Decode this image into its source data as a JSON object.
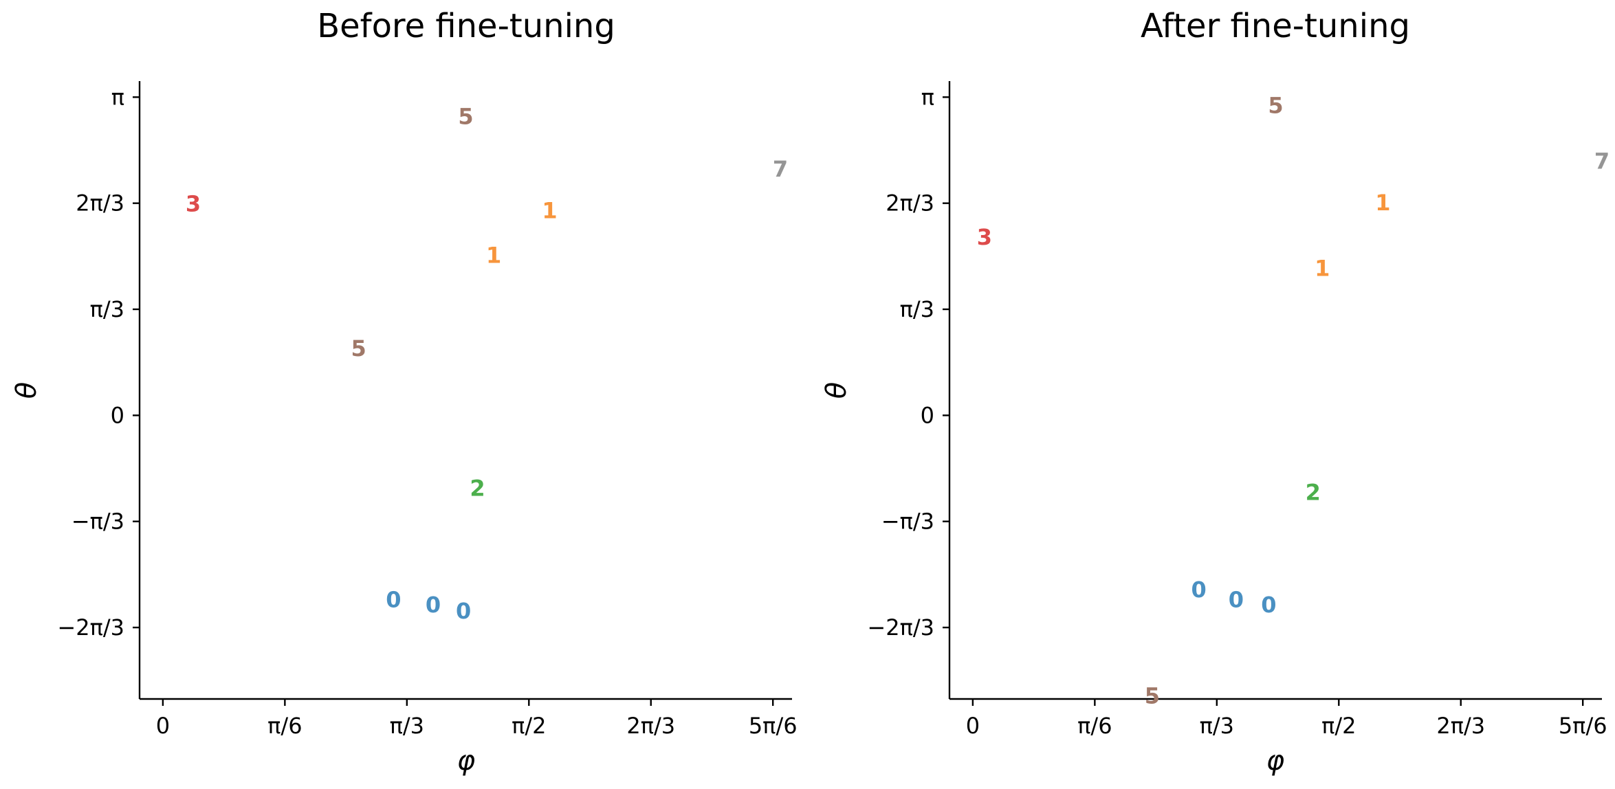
{
  "chart_data": [
    {
      "type": "scatter",
      "title": "Before fine-tuning",
      "xlabel": "φ",
      "ylabel": "θ",
      "xlim": [
        -0.1,
        2.7
      ],
      "ylim": [
        -2.8,
        3.3
      ],
      "x_ticks": [
        {
          "value": 0,
          "label": "0"
        },
        {
          "value": 0.5236,
          "label": "π/6"
        },
        {
          "value": 1.0472,
          "label": "π/3"
        },
        {
          "value": 1.5708,
          "label": "π/2"
        },
        {
          "value": 2.0944,
          "label": "2π/3"
        },
        {
          "value": 2.618,
          "label": "5π/6"
        }
      ],
      "y_ticks": [
        {
          "value": 3.1416,
          "label": "π"
        },
        {
          "value": 2.0944,
          "label": "2π/3"
        },
        {
          "value": 1.0472,
          "label": "π/3"
        },
        {
          "value": 0,
          "label": "0"
        },
        {
          "value": -1.0472,
          "label": "−π/3"
        },
        {
          "value": -2.0944,
          "label": "−2π/3"
        }
      ],
      "points": [
        {
          "x": 1.3,
          "y": 2.95,
          "label": "5",
          "color": "#a07868"
        },
        {
          "x": 2.65,
          "y": 2.43,
          "label": "7",
          "color": "#959595"
        },
        {
          "x": 0.13,
          "y": 2.09,
          "label": "3",
          "color": "#dd4b4b"
        },
        {
          "x": 1.66,
          "y": 2.02,
          "label": "1",
          "color": "#f7953c"
        },
        {
          "x": 1.42,
          "y": 1.58,
          "label": "1",
          "color": "#f7953c"
        },
        {
          "x": 0.84,
          "y": 0.66,
          "label": "5",
          "color": "#a07868"
        },
        {
          "x": 1.35,
          "y": -0.72,
          "label": "2",
          "color": "#4caf4c"
        },
        {
          "x": 0.99,
          "y": -1.82,
          "label": "0",
          "color": "#4a90c2"
        },
        {
          "x": 1.16,
          "y": -1.87,
          "label": "0",
          "color": "#4a90c2"
        },
        {
          "x": 1.29,
          "y": -1.93,
          "label": "0",
          "color": "#4a90c2"
        }
      ]
    },
    {
      "type": "scatter",
      "title": "After fine-tuning",
      "xlabel": "φ",
      "ylabel": "θ",
      "xlim": [
        -0.1,
        2.7
      ],
      "ylim": [
        -2.8,
        3.3
      ],
      "x_ticks": [
        {
          "value": 0,
          "label": "0"
        },
        {
          "value": 0.5236,
          "label": "π/6"
        },
        {
          "value": 1.0472,
          "label": "π/3"
        },
        {
          "value": 1.5708,
          "label": "π/2"
        },
        {
          "value": 2.0944,
          "label": "2π/3"
        },
        {
          "value": 2.618,
          "label": "5π/6"
        }
      ],
      "y_ticks": [
        {
          "value": 3.1416,
          "label": "π"
        },
        {
          "value": 2.0944,
          "label": "2π/3"
        },
        {
          "value": 1.0472,
          "label": "π/3"
        },
        {
          "value": 0,
          "label": "0"
        },
        {
          "value": -1.0472,
          "label": "−π/3"
        },
        {
          "value": -2.0944,
          "label": "−2π/3"
        }
      ],
      "points": [
        {
          "x": 1.3,
          "y": 3.06,
          "label": "5",
          "color": "#a07868"
        },
        {
          "x": 2.7,
          "y": 2.51,
          "label": "7",
          "color": "#959595"
        },
        {
          "x": 1.76,
          "y": 2.1,
          "label": "1",
          "color": "#f7953c"
        },
        {
          "x": 0.05,
          "y": 1.76,
          "label": "3",
          "color": "#dd4b4b"
        },
        {
          "x": 1.5,
          "y": 1.45,
          "label": "1",
          "color": "#f7953c"
        },
        {
          "x": 1.46,
          "y": -0.76,
          "label": "2",
          "color": "#4caf4c"
        },
        {
          "x": 0.97,
          "y": -1.72,
          "label": "0",
          "color": "#4a90c2"
        },
        {
          "x": 1.13,
          "y": -1.82,
          "label": "0",
          "color": "#4a90c2"
        },
        {
          "x": 1.27,
          "y": -1.87,
          "label": "0",
          "color": "#4a90c2"
        },
        {
          "x": 0.77,
          "y": -2.77,
          "label": "5",
          "color": "#a07868"
        }
      ]
    }
  ]
}
